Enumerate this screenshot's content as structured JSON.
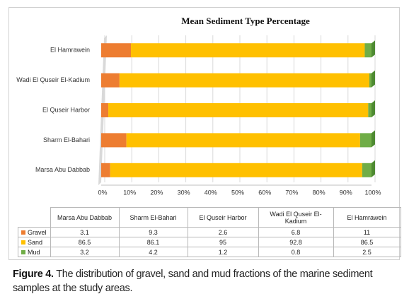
{
  "chart_data": {
    "type": "bar",
    "orientation": "horizontal",
    "stacking": "percent",
    "title": "Mean Sediment Type Percentage",
    "categories": [
      "Marsa Abu Dabbab",
      "Sharm El-Bahari",
      "El Quseir Harbor",
      "Wadi El Quseir El-Kadium",
      "El Hamrawein"
    ],
    "series": [
      {
        "name": "Gravel",
        "color": "#ed7d31",
        "values": [
          3.1,
          9.3,
          2.6,
          6.8,
          11
        ]
      },
      {
        "name": "Sand",
        "color": "#ffc000",
        "values": [
          86.5,
          86.1,
          95,
          92.8,
          86.5
        ]
      },
      {
        "name": "Mud",
        "color": "#70ad47",
        "values": [
          3.2,
          4.2,
          1.2,
          0.8,
          2.5
        ]
      }
    ],
    "xlim": [
      0,
      100
    ],
    "xticks": [
      {
        "value": 0,
        "label": "0%"
      },
      {
        "value": 10,
        "label": "10%"
      },
      {
        "value": 20,
        "label": "20%"
      },
      {
        "value": 30,
        "label": "30%"
      },
      {
        "value": 40,
        "label": "40%"
      },
      {
        "value": 50,
        "label": "50%"
      },
      {
        "value": 60,
        "label": "60%"
      },
      {
        "value": 70,
        "label": "70%"
      },
      {
        "value": 80,
        "label": "80%"
      },
      {
        "value": 90,
        "label": "90%"
      },
      {
        "value": 100,
        "label": "100%"
      }
    ],
    "grid": true,
    "data_table": true
  },
  "caption": {
    "label": "Figure 4.",
    "text": "The distribution of gravel, sand and mud fractions of the marine sediment samples at the study areas."
  }
}
